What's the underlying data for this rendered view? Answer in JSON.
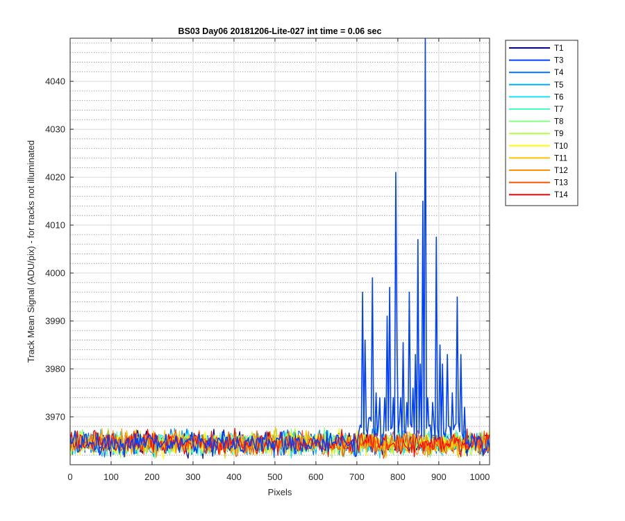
{
  "chart_data": {
    "type": "line",
    "title": "BS03 Day06 20181206-Lite-027 int time = 0.06 sec",
    "xlabel": "Pixels",
    "ylabel": "Track Mean Signal (ADU/pix) - for tracks not illuminated",
    "xlim": [
      0,
      1024
    ],
    "ylim": [
      3960,
      4049
    ],
    "x_ticks": [
      0,
      100,
      200,
      300,
      400,
      500,
      600,
      700,
      800,
      900,
      1000
    ],
    "x_tick_labels": [
      "0",
      "100",
      "200",
      "300",
      "400",
      "500",
      "600",
      "700",
      "800",
      "900",
      "1000"
    ],
    "y_ticks": [
      3970,
      3980,
      3990,
      4000,
      4010,
      4020,
      4030,
      4040
    ],
    "y_tick_labels": [
      "3970",
      "3980",
      "3990",
      "4000",
      "4010",
      "4020",
      "4030",
      "4040"
    ],
    "y_minor_step": 2,
    "grid": true,
    "minor_grid": true,
    "legend_position": "outside-right-top",
    "noise_baseline": 3964.5,
    "noise_amplitude": 2.5,
    "series": [
      {
        "name": "T1",
        "color": "#00008f"
      },
      {
        "name": "T3",
        "color": "#0040ff"
      },
      {
        "name": "T4",
        "color": "#0070ff"
      },
      {
        "name": "T5",
        "color": "#00b0ff"
      },
      {
        "name": "T6",
        "color": "#10e0ff"
      },
      {
        "name": "T7",
        "color": "#40ffc0"
      },
      {
        "name": "T8",
        "color": "#80ff80"
      },
      {
        "name": "T9",
        "color": "#b0ff40"
      },
      {
        "name": "T10",
        "color": "#ffff00"
      },
      {
        "name": "T11",
        "color": "#ffc000"
      },
      {
        "name": "T12",
        "color": "#ff9000"
      },
      {
        "name": "T13",
        "color": "#ff5000"
      },
      {
        "name": "T14",
        "color": "#ff0000"
      }
    ],
    "annotated_series": "T3",
    "spikes": [
      {
        "x": 713,
        "y": 3996
      },
      {
        "x": 720,
        "y": 3986
      },
      {
        "x": 738,
        "y": 3999
      },
      {
        "x": 746,
        "y": 3975
      },
      {
        "x": 755,
        "y": 3974
      },
      {
        "x": 767,
        "y": 3974
      },
      {
        "x": 774,
        "y": 3991
      },
      {
        "x": 781,
        "y": 3997
      },
      {
        "x": 790,
        "y": 3974
      },
      {
        "x": 794,
        "y": 4021
      },
      {
        "x": 799,
        "y": 3984.5
      },
      {
        "x": 806,
        "y": 3974
      },
      {
        "x": 814,
        "y": 3985.5
      },
      {
        "x": 822,
        "y": 3973
      },
      {
        "x": 828,
        "y": 3996
      },
      {
        "x": 837,
        "y": 3976
      },
      {
        "x": 843,
        "y": 3983
      },
      {
        "x": 849,
        "y": 4007
      },
      {
        "x": 856,
        "y": 3981
      },
      {
        "x": 861,
        "y": 4015
      },
      {
        "x": 866,
        "y": 4049
      },
      {
        "x": 873,
        "y": 3974
      },
      {
        "x": 884,
        "y": 3973
      },
      {
        "x": 895,
        "y": 4007.5
      },
      {
        "x": 902,
        "y": 3985
      },
      {
        "x": 908,
        "y": 3981
      },
      {
        "x": 920,
        "y": 3983
      },
      {
        "x": 933,
        "y": 3975
      },
      {
        "x": 944,
        "y": 3995
      },
      {
        "x": 955,
        "y": 3983
      },
      {
        "x": 962,
        "y": 3972
      }
    ]
  }
}
